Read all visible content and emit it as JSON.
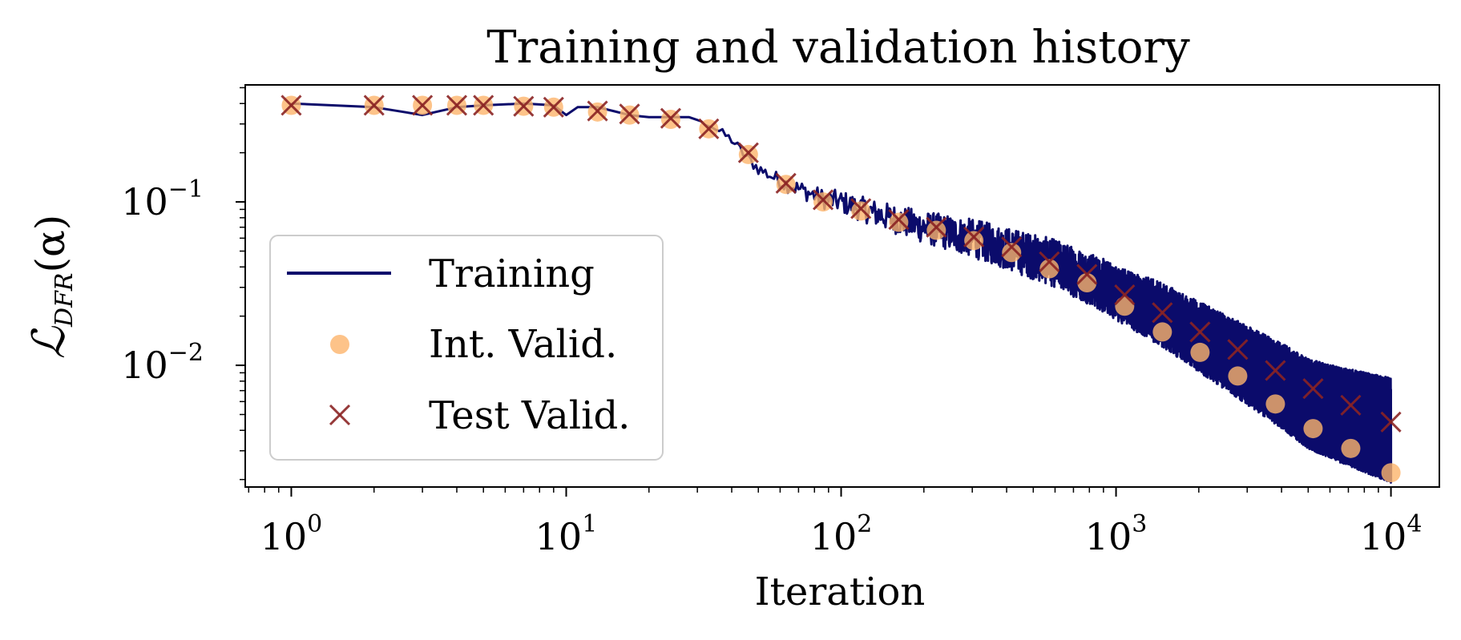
{
  "chart_data": {
    "type": "line",
    "title": "Training and validation history",
    "xlabel": "Iteration",
    "ylabel_parts": {
      "main": "ℒ",
      "sub": "DFR",
      "arg": "(α)"
    },
    "x_scale": "log",
    "y_scale": "log",
    "xlim": [
      0.68,
      15000
    ],
    "ylim": [
      0.0018,
      0.52
    ],
    "x_ticks": [
      {
        "value": 1,
        "base": "10",
        "exp": "0"
      },
      {
        "value": 10,
        "base": "10",
        "exp": "1"
      },
      {
        "value": 100,
        "base": "10",
        "exp": "2"
      },
      {
        "value": 1000,
        "base": "10",
        "exp": "3"
      },
      {
        "value": 10000,
        "base": "10",
        "exp": "4"
      }
    ],
    "y_ticks": [
      {
        "value": 0.1,
        "base": "10",
        "exp": "−1"
      },
      {
        "value": 0.01,
        "base": "10",
        "exp": "−2"
      }
    ],
    "grid": false,
    "legend_position": "lower-left",
    "colors": {
      "training": "#0b0b6b",
      "int_valid": "#fdb46c",
      "test_valid": "#8b2323"
    },
    "series": [
      {
        "name": "Training",
        "kind": "line",
        "noise": "band widens from ~10^1.5 to 10^4",
        "x": [
          1,
          2,
          3,
          4,
          5,
          7,
          9,
          10,
          11,
          13,
          17,
          20,
          24,
          28,
          33,
          40,
          45,
          50,
          62,
          75,
          85,
          100,
          120,
          150,
          200,
          300,
          400,
          600,
          800,
          1000,
          1500,
          2000,
          3000,
          4000,
          5000,
          7000,
          10000
        ],
        "y": [
          0.4,
          0.38,
          0.34,
          0.38,
          0.39,
          0.4,
          0.39,
          0.34,
          0.38,
          0.38,
          0.34,
          0.33,
          0.33,
          0.33,
          0.3,
          0.24,
          0.19,
          0.16,
          0.13,
          0.115,
          0.105,
          0.1,
          0.09,
          0.08,
          0.07,
          0.06,
          0.052,
          0.042,
          0.034,
          0.028,
          0.02,
          0.015,
          0.01,
          0.0075,
          0.0058,
          0.0048,
          0.004
        ]
      },
      {
        "name": "Int. Valid.",
        "kind": "scatter",
        "marker": "circle",
        "x": [
          1,
          2,
          3,
          4,
          5,
          7,
          9,
          13,
          17,
          24,
          33,
          46,
          63,
          86,
          118,
          162,
          222,
          304,
          417,
          572,
          784,
          1075,
          1474,
          2021,
          2771,
          3799,
          5209,
          7142,
          10000
        ],
        "y": [
          0.39,
          0.39,
          0.39,
          0.39,
          0.39,
          0.385,
          0.38,
          0.355,
          0.34,
          0.32,
          0.28,
          0.195,
          0.128,
          0.1,
          0.088,
          0.075,
          0.067,
          0.058,
          0.049,
          0.039,
          0.032,
          0.023,
          0.016,
          0.012,
          0.0086,
          0.0058,
          0.0041,
          0.0031,
          0.0022
        ]
      },
      {
        "name": "Test Valid.",
        "kind": "scatter",
        "marker": "x",
        "x": [
          1,
          2,
          3,
          4,
          5,
          7,
          9,
          13,
          17,
          24,
          33,
          46,
          63,
          86,
          118,
          162,
          222,
          304,
          417,
          572,
          784,
          1075,
          1474,
          2021,
          2771,
          3799,
          5209,
          7142,
          10000
        ],
        "y": [
          0.39,
          0.39,
          0.39,
          0.39,
          0.39,
          0.385,
          0.38,
          0.36,
          0.345,
          0.325,
          0.28,
          0.2,
          0.13,
          0.103,
          0.091,
          0.078,
          0.07,
          0.061,
          0.053,
          0.043,
          0.036,
          0.027,
          0.021,
          0.016,
          0.0125,
          0.0093,
          0.0072,
          0.0057,
          0.0045
        ]
      }
    ]
  }
}
